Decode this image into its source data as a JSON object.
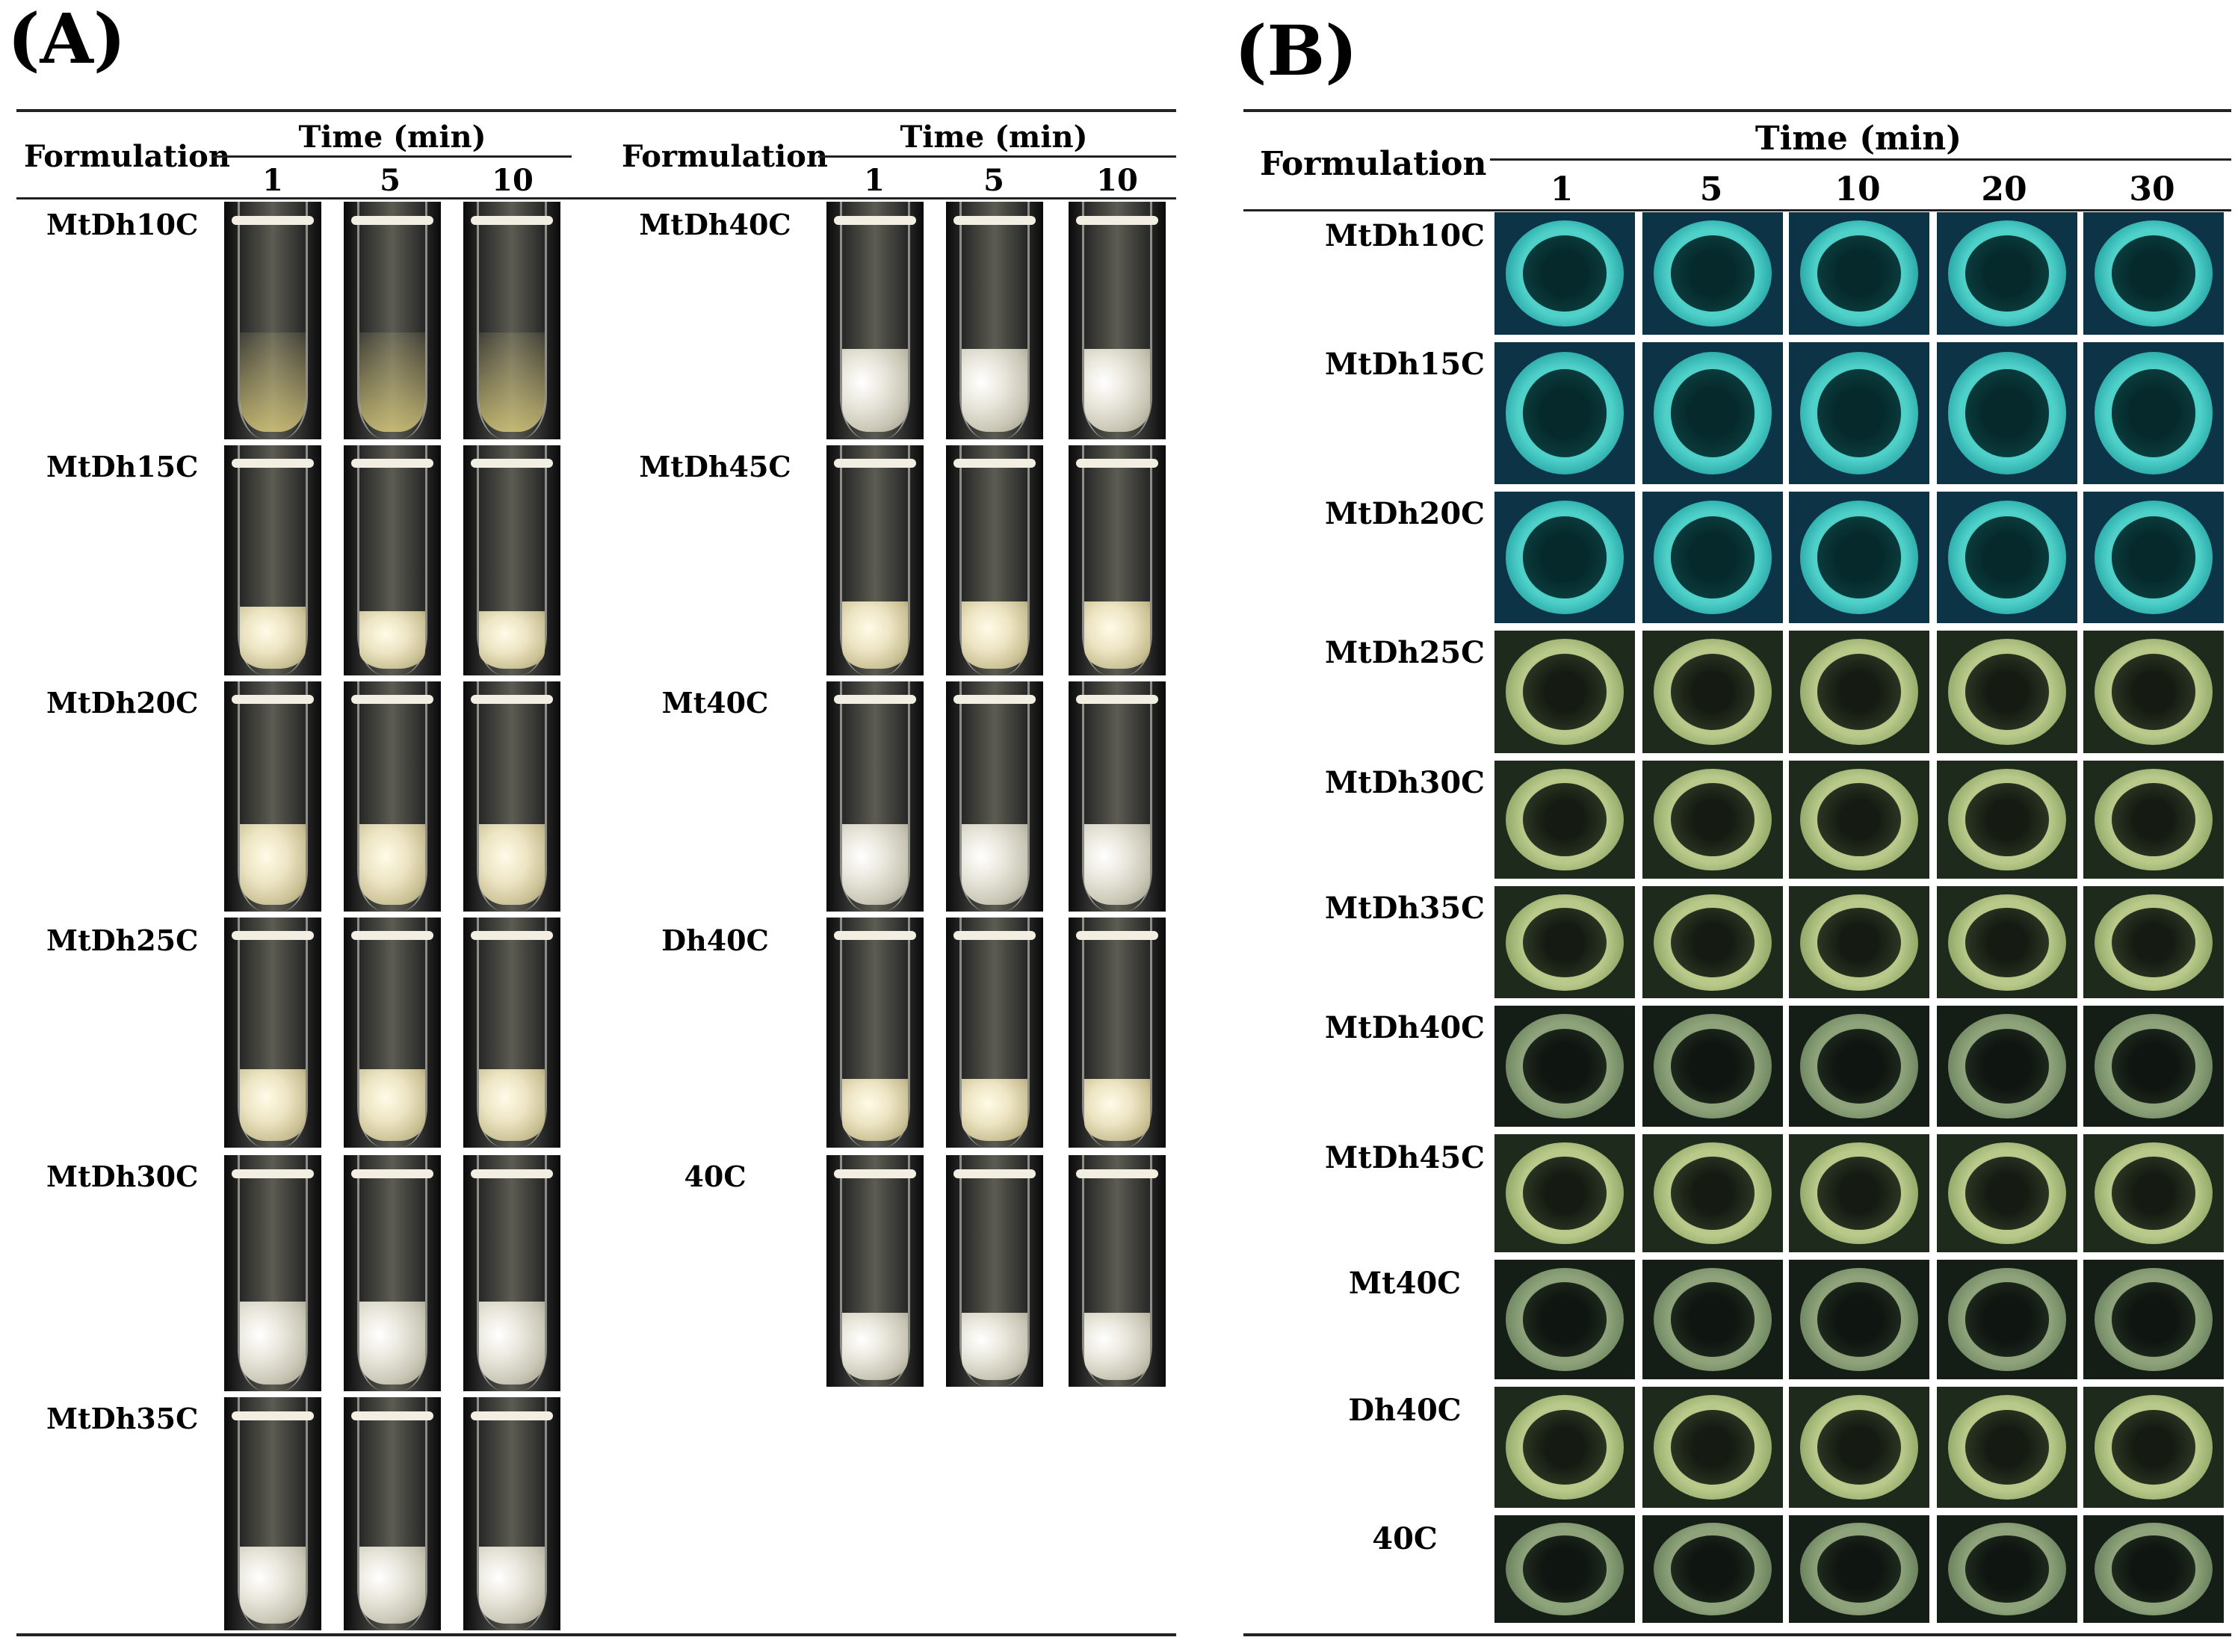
{
  "panel_a": {
    "label": "(A)",
    "formulation_header": "Formulation",
    "time_header": "Time (min)",
    "times": [
      "1",
      "5",
      "10"
    ],
    "left_rows": [
      "MtDh10C",
      "MtDh15C",
      "MtDh20C",
      "MtDh25C",
      "MtDh30C",
      "MtDh35C"
    ],
    "right_rows": [
      "MtDh40C",
      "MtDh45C",
      "Mt40C",
      "Dh40C",
      "40C"
    ]
  },
  "panel_b": {
    "label": "(B)",
    "formulation_header": "Formulation",
    "time_header": "Time (min)",
    "times": [
      "1",
      "5",
      "10",
      "20",
      "30"
    ],
    "rows": [
      "MtDh10C",
      "MtDh15C",
      "MtDh20C",
      "MtDh25C",
      "MtDh30C",
      "MtDh35C",
      "MtDh40C",
      "MtDh45C",
      "Mt40C",
      "Dh40C",
      "40C"
    ]
  }
}
